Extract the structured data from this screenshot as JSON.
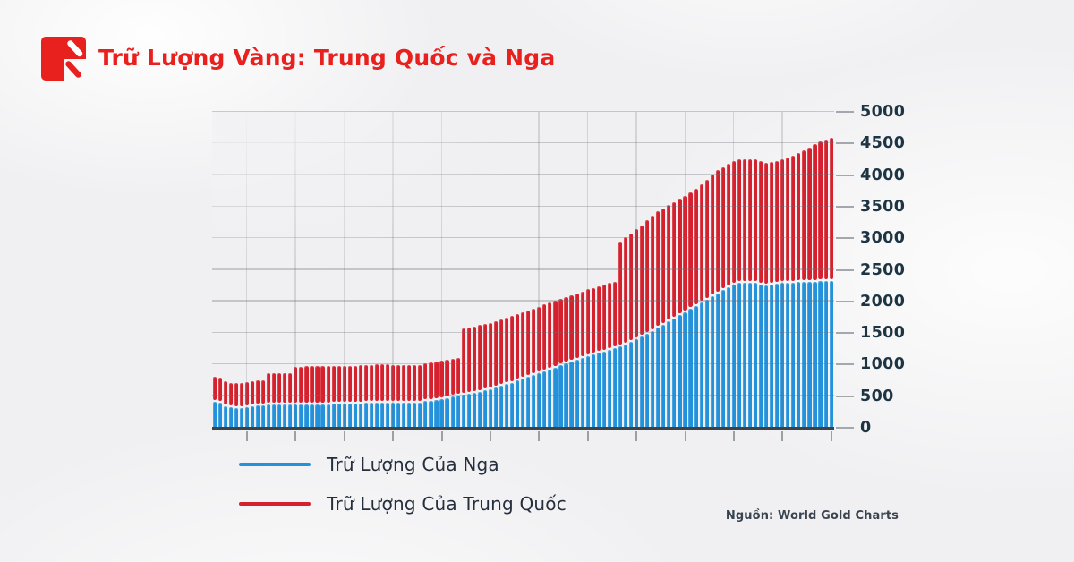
{
  "header": {
    "title": "Trữ Lượng Vàng: Trung Quốc và Nga",
    "title_color": "#e8201e"
  },
  "logo": {
    "name": "red-square-slash-logo",
    "color": "#e8201e"
  },
  "source": {
    "text": "Nguồn: World Gold Charts"
  },
  "colors": {
    "russia_blue": "#2392db",
    "china_red": "#d5212e",
    "axis_text": "#1d3443",
    "legend_text": "#262f3e",
    "axis_line": "#3e4347"
  },
  "chart_data": {
    "type": "bar",
    "stacked": true,
    "title": "Trữ Lượng Vàng: Trung Quốc và Nga",
    "xlabel": "",
    "ylabel": "",
    "ylim": [
      0,
      5000
    ],
    "yticks": [
      0,
      500,
      1000,
      1500,
      2000,
      2500,
      3000,
      3500,
      4000,
      4500,
      5000
    ],
    "grid": true,
    "x_tick_count": 13,
    "x_labels_visible": false,
    "legend_position": "bottom-left",
    "series": [
      {
        "name": "Trữ Lượng Của Nga",
        "color": "#2392db",
        "values": [
          410,
          395,
          340,
          320,
          315,
          318,
          325,
          335,
          350,
          358,
          362,
          365,
          365,
          368,
          368,
          370,
          370,
          372,
          372,
          374,
          375,
          375,
          376,
          377,
          378,
          380,
          382,
          386,
          390,
          395,
          400,
          402,
          400,
          396,
          392,
          390,
          390,
          392,
          398,
          420,
          432,
          444,
          456,
          470,
          490,
          505,
          520,
          535,
          550,
          570,
          590,
          610,
          635,
          660,
          688,
          715,
          745,
          775,
          805,
          835,
          865,
          895,
          925,
          955,
          985,
          1015,
          1045,
          1075,
          1105,
          1135,
          1160,
          1185,
          1210,
          1235,
          1260,
          1285,
          1320,
          1360,
          1400,
          1445,
          1490,
          1535,
          1580,
          1630,
          1680,
          1730,
          1780,
          1830,
          1880,
          1930,
          1980,
          2030,
          2080,
          2130,
          2180,
          2230,
          2270,
          2295,
          2300,
          2300,
          2298,
          2270,
          2250,
          2260,
          2280,
          2295,
          2300,
          2300,
          2302,
          2305,
          2310,
          2315,
          2320,
          2325,
          2330
        ]
      },
      {
        "name": "Trữ Lượng Của Trung Quốc",
        "color": "#d5212e",
        "values": [
          400,
          400,
          395,
          395,
          395,
          395,
          395,
          395,
          395,
          395,
          500,
          500,
          500,
          500,
          500,
          600,
          600,
          600,
          600,
          600,
          600,
          600,
          600,
          600,
          600,
          600,
          600,
          600,
          600,
          600,
          600,
          600,
          600,
          600,
          600,
          600,
          600,
          600,
          600,
          600,
          600,
          600,
          600,
          600,
          600,
          600,
          1054,
          1054,
          1054,
          1054,
          1054,
          1054,
          1054,
          1054,
          1054,
          1054,
          1054,
          1054,
          1054,
          1054,
          1054,
          1054,
          1054,
          1054,
          1054,
          1054,
          1054,
          1054,
          1054,
          1054,
          1054,
          1054,
          1054,
          1054,
          1054,
          1658,
          1693,
          1720,
          1743,
          1762,
          1797,
          1828,
          1842,
          1842,
          1842,
          1842,
          1842,
          1842,
          1842,
          1852,
          1874,
          1900,
          1926,
          1948,
          1948,
          1948,
          1948,
          1948,
          1948,
          1948,
          1948,
          1948,
          1948,
          1948,
          1948,
          1948,
          1980,
          2010,
          2050,
          2090,
          2130,
          2170,
          2210,
          2240,
          2264
        ]
      }
    ]
  }
}
